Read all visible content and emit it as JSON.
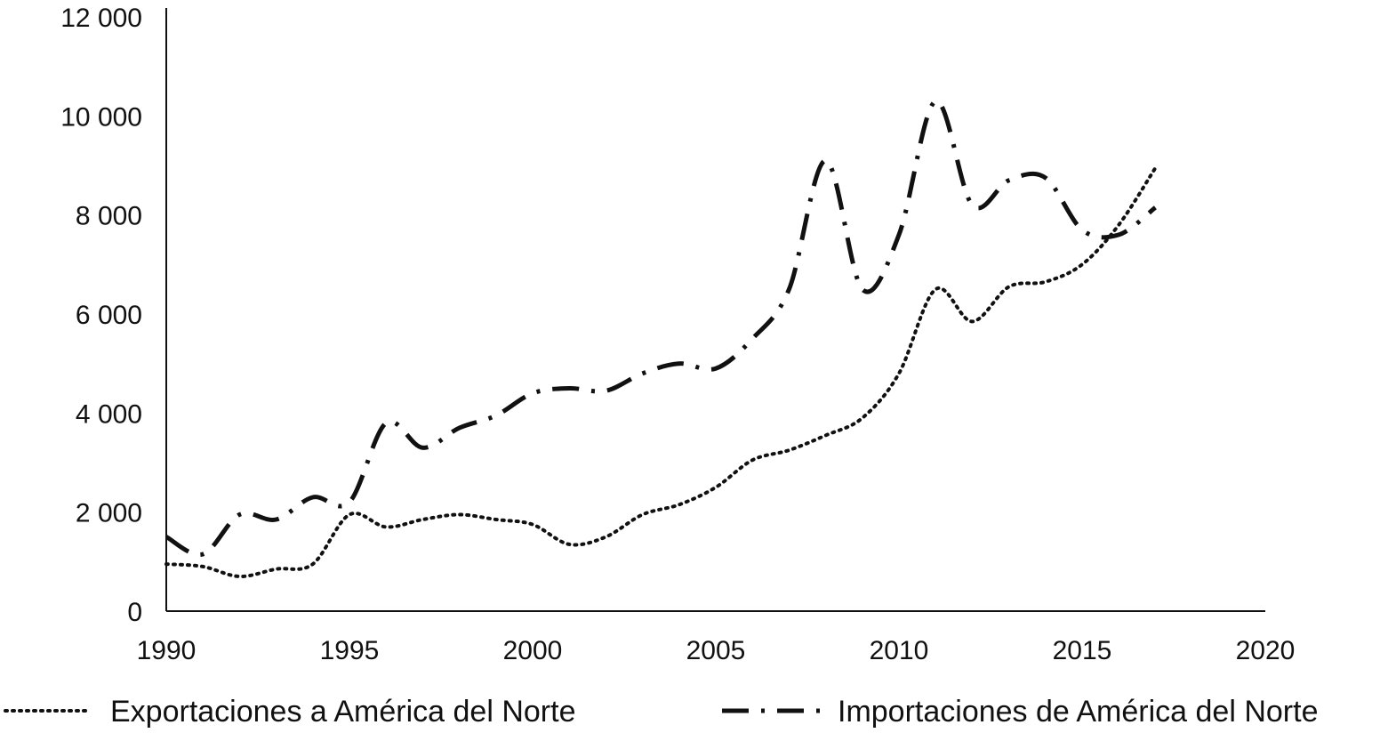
{
  "chart_data": {
    "type": "line",
    "title": "",
    "xlabel": "",
    "ylabel": "",
    "xlim": [
      1990,
      2020
    ],
    "ylim": [
      0,
      12000
    ],
    "x_ticks": [
      "1990",
      "1995",
      "2000",
      "2005",
      "2010",
      "2015",
      "2020"
    ],
    "y_ticks": [
      "0",
      "2 000",
      "4 000",
      "6 000",
      "8 000",
      "10 000",
      "12 000"
    ],
    "grid": false,
    "legend_position": "bottom",
    "x": [
      1990,
      1991,
      1992,
      1993,
      1994,
      1995,
      1996,
      1997,
      1998,
      1999,
      2000,
      2001,
      2002,
      2003,
      2004,
      2005,
      2006,
      2007,
      2008,
      2009,
      2010,
      2011,
      2012,
      2013,
      2014,
      2015,
      2016,
      2017
    ],
    "series": [
      {
        "name": "Exportaciones a América del Norte",
        "style": "dotted",
        "values": [
          950,
          900,
          700,
          850,
          950,
          1950,
          1700,
          1850,
          1950,
          1850,
          1750,
          1350,
          1500,
          1950,
          2150,
          2500,
          3050,
          3250,
          3550,
          3900,
          4800,
          6500,
          5850,
          6550,
          6650,
          7000,
          7800,
          8950
        ]
      },
      {
        "name": "Importaciones de América del Norte",
        "style": "dash-dot",
        "values": [
          1500,
          1150,
          1950,
          1850,
          2300,
          2200,
          3800,
          3300,
          3700,
          3950,
          4400,
          4500,
          4450,
          4800,
          5000,
          4900,
          5500,
          6500,
          9100,
          6500,
          7600,
          10300,
          8200,
          8700,
          8750,
          7700,
          7600,
          8150
        ]
      }
    ],
    "colors": {
      "axis": "#111111",
      "line": "#111111",
      "background": "#ffffff"
    }
  }
}
